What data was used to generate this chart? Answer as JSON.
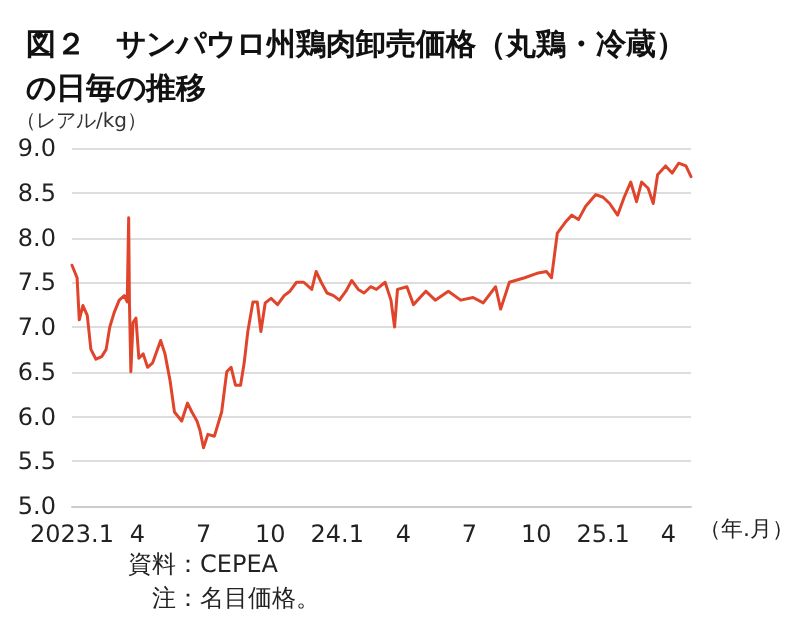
{
  "chart_data": {
    "type": "line",
    "title": "図２　サンパウロ州鶏肉卸売価格（丸鶏・冷蔵）の日毎の推移",
    "ylabel": "（レアル/kg）",
    "xlabel": "（年.月）",
    "annotations": [
      "資料：CEPEA",
      "注：名目価格。"
    ],
    "x": [
      "2023-01-01",
      "2023-01-08",
      "2023-01-11",
      "2023-01-16",
      "2023-01-22",
      "2023-01-27",
      "2023-02-03",
      "2023-02-11",
      "2023-02-17",
      "2023-02-22",
      "2023-02-28",
      "2023-03-07",
      "2023-03-14",
      "2023-03-18",
      "2023-03-20",
      "2023-03-21",
      "2023-03-23",
      "2023-03-26",
      "2023-03-30",
      "2023-04-03",
      "2023-04-09",
      "2023-04-15",
      "2023-04-22",
      "2023-05-03",
      "2023-05-09",
      "2023-05-16",
      "2023-05-22",
      "2023-06-01",
      "2023-06-09",
      "2023-06-15",
      "2023-06-22",
      "2023-06-26",
      "2023-07-01",
      "2023-07-07",
      "2023-07-16",
      "2023-07-26",
      "2023-08-02",
      "2023-08-08",
      "2023-08-14",
      "2023-08-21",
      "2023-08-26",
      "2023-08-31",
      "2023-09-07",
      "2023-09-13",
      "2023-09-18",
      "2023-09-24",
      "2023-10-02",
      "2023-10-11",
      "2023-10-20",
      "2023-10-28",
      "2023-11-06",
      "2023-11-16",
      "2023-11-27",
      "2023-12-03",
      "2023-12-10",
      "2023-12-18",
      "2023-12-27",
      "2024-01-04",
      "2024-01-13",
      "2024-01-21",
      "2024-01-30",
      "2024-02-07",
      "2024-02-16",
      "2024-02-24",
      "2024-03-07",
      "2024-03-15",
      "2024-03-20",
      "2024-03-24",
      "2024-04-06",
      "2024-04-15",
      "2024-05-02",
      "2024-05-15",
      "2024-06-02",
      "2024-06-19",
      "2024-07-06",
      "2024-07-20",
      "2024-08-06",
      "2024-08-13",
      "2024-08-25",
      "2024-09-15",
      "2024-10-02",
      "2024-10-15",
      "2024-10-22",
      "2024-10-30",
      "2024-11-10",
      "2024-11-19",
      "2024-11-28",
      "2024-12-08",
      "2024-12-22",
      "2025-01-01",
      "2025-01-10",
      "2025-01-21",
      "2025-01-30",
      "2025-02-08",
      "2025-02-16",
      "2025-02-23",
      "2025-03-04",
      "2025-03-11",
      "2025-03-17",
      "2025-03-28",
      "2025-04-06",
      "2025-04-15",
      "2025-04-25",
      "2025-05-02"
    ],
    "series": [
      {
        "color": "#e0452b",
        "values": [
          7.69,
          7.55,
          7.08,
          7.24,
          7.13,
          6.75,
          6.64,
          6.67,
          6.75,
          7.0,
          7.16,
          7.3,
          7.35,
          7.28,
          8.22,
          7.3,
          6.5,
          7.05,
          7.1,
          6.65,
          6.7,
          6.55,
          6.6,
          6.85,
          6.7,
          6.4,
          6.05,
          5.95,
          6.15,
          6.05,
          5.95,
          5.85,
          5.65,
          5.8,
          5.78,
          6.05,
          6.5,
          6.55,
          6.35,
          6.35,
          6.6,
          6.95,
          7.28,
          7.28,
          6.95,
          7.27,
          7.32,
          7.25,
          7.35,
          7.4,
          7.5,
          7.5,
          7.42,
          7.62,
          7.5,
          7.38,
          7.35,
          7.3,
          7.4,
          7.52,
          7.42,
          7.38,
          7.45,
          7.42,
          7.5,
          7.3,
          7.0,
          7.42,
          7.45,
          7.25,
          7.4,
          7.3,
          7.4,
          7.3,
          7.33,
          7.27,
          7.45,
          7.2,
          7.5,
          7.55,
          7.6,
          7.62,
          7.55,
          8.05,
          8.17,
          8.25,
          8.2,
          8.35,
          8.48,
          8.45,
          8.38,
          8.25,
          8.45,
          8.62,
          8.4,
          8.62,
          8.55,
          8.38,
          8.7,
          8.8,
          8.72,
          8.83,
          8.8,
          8.68
        ]
      }
    ],
    "xlim": [
      "2023-01-01",
      "2025-05-02"
    ],
    "xticks": [
      {
        "value": "2023-01-01",
        "label": "2023.1"
      },
      {
        "value": "2023-04-01",
        "label": "4"
      },
      {
        "value": "2023-07-01",
        "label": "7"
      },
      {
        "value": "2023-10-01",
        "label": "10"
      },
      {
        "value": "2024-01-01",
        "label": "24.1"
      },
      {
        "value": "2024-04-01",
        "label": "4"
      },
      {
        "value": "2024-07-01",
        "label": "7"
      },
      {
        "value": "2024-10-01",
        "label": "10"
      },
      {
        "value": "2025-01-01",
        "label": "25.1"
      },
      {
        "value": "2025-04-01",
        "label": "4"
      }
    ],
    "ylim": [
      5.0,
      9.0
    ],
    "yticks": [
      {
        "value": 5.0,
        "label": "5.0"
      },
      {
        "value": 5.5,
        "label": "5.5"
      },
      {
        "value": 6.0,
        "label": "6.0"
      },
      {
        "value": 6.5,
        "label": "6.5"
      },
      {
        "value": 7.0,
        "label": "7.0"
      },
      {
        "value": 7.5,
        "label": "7.5"
      },
      {
        "value": 8.0,
        "label": "8.0"
      },
      {
        "value": 8.5,
        "label": "8.5"
      },
      {
        "value": 9.0,
        "label": "9.0"
      }
    ],
    "grid": "y",
    "marker": "none",
    "line_style": "solid"
  }
}
